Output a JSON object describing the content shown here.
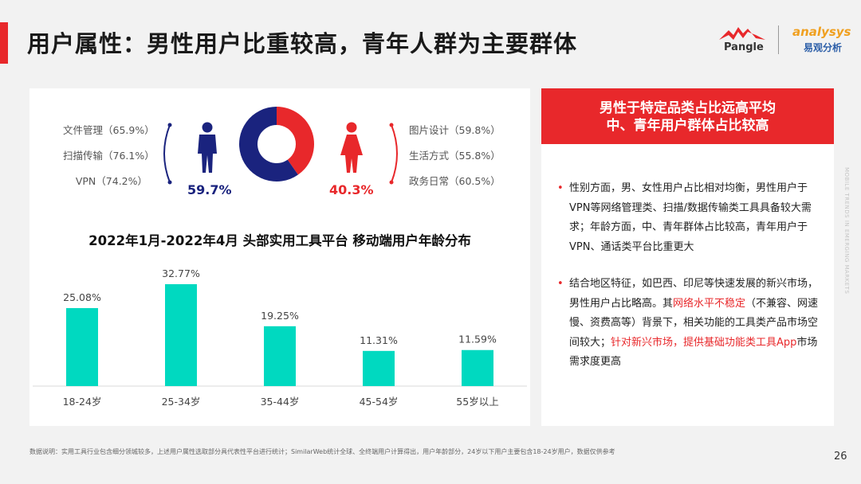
{
  "header": {
    "title": "用户属性：男性用户比重较高，青年人群为主要群体",
    "logo_pangle": "Pangle",
    "logo_analysys": "analysys",
    "logo_analysys_cn": "易观分析"
  },
  "gender": {
    "male_categories": [
      "文件管理（65.9%）",
      "扫描传输（76.1%）",
      "VPN（74.2%）"
    ],
    "female_categories": [
      "图片设计（59.8%）",
      "生活方式（55.8%）",
      "政务日常（60.5%）"
    ],
    "male_pct_label": "59.7%",
    "female_pct_label": "40.3%",
    "male_share": 59.7,
    "female_share": 40.3,
    "male_color": "#1a237e",
    "female_color": "#e8282b",
    "male_icon": "male-user-icon",
    "female_icon": "female-user-icon"
  },
  "chart_data": {
    "type": "bar",
    "title": "2022年1月-2022年4月  头部实用工具平台  移动端用户年龄分布",
    "categories": [
      "18-24岁",
      "25-34岁",
      "35-44岁",
      "45-54岁",
      "55岁以上"
    ],
    "values": [
      25.08,
      32.77,
      19.25,
      11.31,
      11.59
    ],
    "value_labels": [
      "25.08%",
      "32.77%",
      "19.25%",
      "11.31%",
      "11.59%"
    ],
    "color": "#00d9c0",
    "grid": false,
    "legend": "none"
  },
  "insight": {
    "header_line1": "男性于特定品类占比远高平均",
    "header_line2": "中、青年用户群体占比较高",
    "bullet_dot": "•",
    "bullet1": "性别方面，男、女性用户占比相对均衡，男性用户于VPN等网络管理类、扫描/数据传输类工具具备较大需求；年龄方面，中、青年群体占比较高，青年用户于VPN、通话类平台比重更大",
    "bullet2_a": "结合地区特征，如巴西、印尼等快速发展的新兴市场，男性用户占比略高。其",
    "bullet2_hl1": "网络水平不稳定",
    "bullet2_b": "（不兼容、网速慢、资费高等）背景下，相关功能的工具类产品市场空间较大；",
    "bullet2_hl2": "针对新兴市场，提供基础功能类工具App",
    "bullet2_c": "市场需求度更高"
  },
  "side_text": "MOBILE TRENDS IN EMERGING MARKETS",
  "footnote": "数据说明：实用工具行业包含细分领城较多，上述用户属性选取部分具代表性平台进行统计；SimilarWeb统计全球、全终端用户计算得出，用户年龄部分，24岁以下用户主要包含18-24岁用户，数据仅供参考",
  "page_number": "26"
}
